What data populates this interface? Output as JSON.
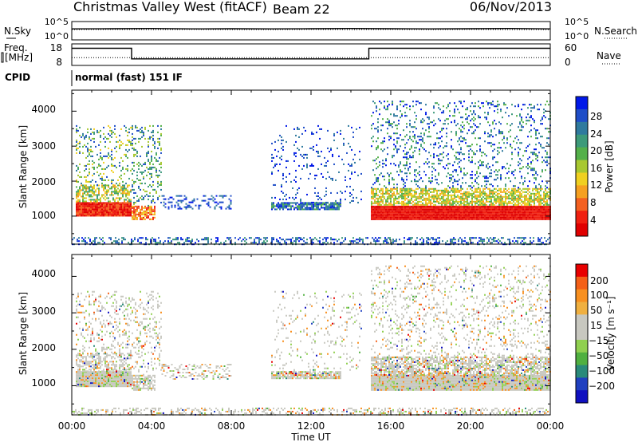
{
  "header": {
    "title": "Christmas Valley West (fitACF)",
    "beam": "Beam 22",
    "date": "06/Nov/2013"
  },
  "colors": {
    "power_scale": [
      "#0018e8",
      "#1f4ec8",
      "#2f7a9e",
      "#3d9a7a",
      "#54b04a",
      "#a8c830",
      "#f0d020",
      "#f6a020",
      "#f46020",
      "#f02010",
      "#e00000"
    ],
    "velocity_scale": [
      "#e80000",
      "#f46018",
      "#f89020",
      "#f0b040",
      "#c8c8c0",
      "#c8c8c0",
      "#90d050",
      "#50b040",
      "#2a8a7a",
      "#2040c0",
      "#1010c0"
    ]
  },
  "chart_data": [
    {
      "type": "line",
      "name": "noise-panel",
      "ylabel": "N.Sky",
      "right_label": "N.Search",
      "yticks_left": [
        "10^5",
        "10^0"
      ],
      "yticks_right": [
        "10^5",
        "10^0"
      ],
      "series": [
        {
          "name": "N.Sky",
          "style": "solid",
          "x": [
            0,
            2,
            4,
            6,
            8,
            10,
            12,
            14,
            16,
            18,
            20,
            22,
            24
          ],
          "y": [
            3.0,
            3.05,
            3.1,
            3.0,
            3.05,
            3.0,
            3.05,
            3.1,
            3.05,
            3.0,
            3.05,
            3.1,
            3.0
          ]
        },
        {
          "name": "N.Search",
          "style": "dotted",
          "x": [
            0,
            2,
            4,
            6,
            8,
            10,
            12,
            14,
            16,
            18,
            20,
            22,
            24
          ],
          "y": [
            2.8,
            2.85,
            2.8,
            2.85,
            2.8,
            2.8,
            2.85,
            2.8,
            2.85,
            2.8,
            2.85,
            2.8,
            2.8
          ]
        }
      ]
    },
    {
      "type": "line",
      "name": "frequency-panel",
      "ylabel_top": "Freq.",
      "ylabel_bottom": "[MHz]",
      "right_label": "Nave",
      "yticks_left": [
        "18",
        "8"
      ],
      "yticks_right": [
        "60",
        "0"
      ],
      "series": [
        {
          "name": "Freq.",
          "style": "solid",
          "x": [
            0,
            3.0,
            3.0,
            14.9,
            14.9,
            24
          ],
          "y": [
            16.5,
            16.5,
            10.7,
            10.7,
            16.5,
            16.5
          ]
        },
        {
          "name": "Nave",
          "style": "dotted",
          "x": [
            0,
            24
          ],
          "y": [
            20,
            20
          ]
        }
      ]
    },
    {
      "type": "table",
      "name": "cpid",
      "label": "CPID",
      "text": "normal (fast) 151 IF"
    },
    {
      "type": "heatmap",
      "name": "power-panel",
      "ylabel": "Slant Range [km]",
      "yticks": [
        "1000",
        "2000",
        "3000",
        "4000"
      ],
      "ylim": [
        200,
        4600
      ],
      "xlim": [
        0,
        24
      ],
      "colorbar_label": "Power [dB]",
      "colorbar_ticks": [
        "28",
        "24",
        "20",
        "16",
        "12",
        "8",
        "4"
      ],
      "colorbar_range": [
        0,
        32
      ]
    },
    {
      "type": "heatmap",
      "name": "velocity-panel",
      "ylabel": "Slant Range [km]",
      "yticks": [
        "1000",
        "2000",
        "3000",
        "4000"
      ],
      "ylim": [
        200,
        4600
      ],
      "xlim": [
        0,
        24
      ],
      "colorbar_label": "Velocity [m s⁻¹]",
      "colorbar_ticks": [
        "200",
        "100",
        "50",
        "15",
        "−15",
        "−50",
        "−100",
        "−200"
      ],
      "xticks": [
        "00:00",
        "04:00",
        "08:00",
        "12:00",
        "16:00",
        "20:00",
        "00:00"
      ],
      "xlabel": "Time UT"
    }
  ]
}
